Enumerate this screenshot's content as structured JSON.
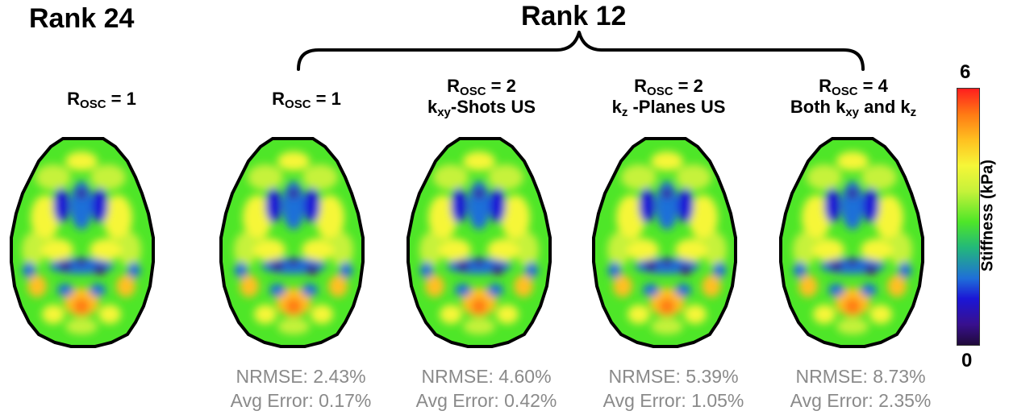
{
  "headings": {
    "rank24": "Rank 24",
    "rank12": "Rank 12"
  },
  "panels": [
    {
      "r": "R",
      "sub": "OSC",
      "eq": " = 1",
      "line2": "",
      "nrmse": "",
      "avg_error": ""
    },
    {
      "r": "R",
      "sub": "OSC",
      "eq": " = 1",
      "line2": "",
      "nrmse": "NRMSE: 2.43%",
      "avg_error": "Avg Error: 0.17%"
    },
    {
      "r": "R",
      "sub": "OSC",
      "eq": " = 2",
      "line2_k": "k",
      "line2_sub": "xy",
      "line2_rest": "-Shots US",
      "nrmse": "NRMSE: 4.60%",
      "avg_error": "Avg Error: 0.42%"
    },
    {
      "r": "R",
      "sub": "OSC",
      "eq": " = 2",
      "line2_k": "k",
      "line2_sub": "z",
      "line2_rest": " -Planes US",
      "nrmse": "NRMSE: 5.39%",
      "avg_error": "Avg Error: 1.05%"
    },
    {
      "r": "R",
      "sub": "OSC",
      "eq": " = 4",
      "line2_a": "Both k",
      "line2_sub1": "xy",
      "line2_b": " and k",
      "line2_sub2": "z",
      "nrmse": "NRMSE: 8.73%",
      "avg_error": "Avg Error: 2.35%"
    }
  ],
  "colorbar": {
    "max": "6",
    "min": "0",
    "label": "Stiffness (kPa)",
    "colors": [
      "#ff1e1e",
      "#ff7a14",
      "#ffc020",
      "#f6f638",
      "#c6f23a",
      "#4ee628",
      "#23b87a",
      "#1f6fd8",
      "#1b16d6",
      "#38108e",
      "#200a3a"
    ]
  }
}
